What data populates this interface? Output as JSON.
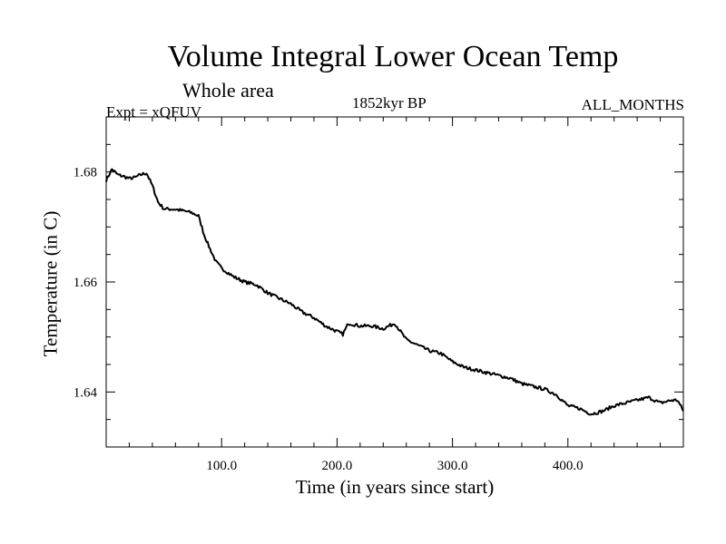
{
  "chart_data": {
    "type": "line",
    "title": "Volume Integral Lower Ocean Temp",
    "subtitle": "Whole area",
    "experiment": "Expt = xQFUV",
    "period": "1852kyr BP",
    "months": "ALL_MONTHS",
    "xlabel": "Time (in years since start)",
    "ylabel": "Temperature (in C)",
    "xlim": [
      0,
      500
    ],
    "ylim": [
      1.63,
      1.69
    ],
    "xticks": [
      100,
      200,
      300,
      400
    ],
    "xtick_labels": [
      "100.0",
      "200.0",
      "300.0",
      "400.0"
    ],
    "yticks": [
      1.64,
      1.66,
      1.68
    ],
    "ytick_labels": [
      "1.64",
      "1.66",
      "1.68"
    ],
    "grid": false,
    "series": [
      {
        "name": "Volume Integral Lower Ocean Temp",
        "x": [
          0,
          5,
          10,
          15,
          20,
          25,
          30,
          35,
          40,
          45,
          50,
          60,
          70,
          75,
          80,
          85,
          90,
          95,
          100,
          110,
          120,
          130,
          140,
          150,
          160,
          170,
          180,
          190,
          200,
          205,
          210,
          220,
          230,
          240,
          250,
          260,
          270,
          280,
          290,
          300,
          310,
          320,
          330,
          340,
          350,
          360,
          370,
          380,
          390,
          400,
          410,
          420,
          430,
          440,
          450,
          460,
          470,
          480,
          490,
          495,
          500
        ],
        "y": [
          1.6785,
          1.6805,
          1.6795,
          1.6792,
          1.6788,
          1.679,
          1.6795,
          1.6798,
          1.6775,
          1.6745,
          1.6733,
          1.6732,
          1.6728,
          1.6725,
          1.672,
          1.6685,
          1.666,
          1.6637,
          1.6625,
          1.661,
          1.66,
          1.6595,
          1.658,
          1.657,
          1.656,
          1.6545,
          1.6535,
          1.652,
          1.651,
          1.6505,
          1.6525,
          1.652,
          1.652,
          1.6515,
          1.6525,
          1.6495,
          1.6485,
          1.6475,
          1.647,
          1.6455,
          1.6445,
          1.644,
          1.6435,
          1.643,
          1.6425,
          1.6415,
          1.641,
          1.6405,
          1.6395,
          1.6375,
          1.637,
          1.636,
          1.6365,
          1.6375,
          1.638,
          1.6385,
          1.639,
          1.638,
          1.6385,
          1.6385,
          1.6365
        ]
      }
    ]
  }
}
